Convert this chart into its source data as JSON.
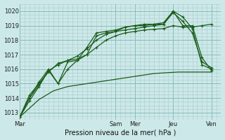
{
  "background_color": "#cce8e8",
  "grid_color": "#aacccc",
  "line_color": "#1a5c1a",
  "title": "Pression niveau de la mer( hPa )",
  "ylim": [
    1012.5,
    1020.5
  ],
  "yticks": [
    1013,
    1014,
    1015,
    1016,
    1017,
    1018,
    1019,
    1020
  ],
  "xtick_labels": [
    "Mar",
    "Sam",
    "Mer",
    "Jeu",
    "Ven"
  ],
  "xtick_positions": [
    0,
    60,
    72,
    96,
    120
  ],
  "xlim": [
    0,
    126
  ],
  "line1_x": [
    0,
    3,
    6,
    9,
    12,
    15,
    18,
    21,
    24,
    27,
    30,
    33,
    36,
    39,
    42,
    45,
    48,
    51,
    54,
    57,
    60,
    63,
    66,
    69,
    72,
    75,
    78,
    81,
    84,
    87,
    90,
    93,
    96,
    99,
    102,
    105,
    108,
    111,
    114,
    117,
    120
  ],
  "line1_y": [
    1012.7,
    1013.0,
    1013.3,
    1013.6,
    1013.9,
    1014.1,
    1014.3,
    1014.5,
    1014.6,
    1014.7,
    1014.8,
    1014.85,
    1014.9,
    1014.95,
    1015.0,
    1015.05,
    1015.1,
    1015.15,
    1015.2,
    1015.25,
    1015.3,
    1015.35,
    1015.4,
    1015.45,
    1015.5,
    1015.55,
    1015.6,
    1015.65,
    1015.7,
    1015.72,
    1015.74,
    1015.76,
    1015.78,
    1015.8,
    1015.8,
    1015.8,
    1015.8,
    1015.8,
    1015.8,
    1015.8,
    1015.8
  ],
  "line2_x": [
    0,
    6,
    12,
    18,
    24,
    30,
    36,
    42,
    48,
    54,
    60,
    66,
    72,
    78,
    84,
    90,
    96,
    102,
    108,
    114,
    120
  ],
  "line2_y": [
    1012.7,
    1014.2,
    1015.0,
    1015.8,
    1016.4,
    1016.6,
    1016.7,
    1017.0,
    1017.5,
    1018.0,
    1018.3,
    1018.5,
    1018.6,
    1018.7,
    1018.75,
    1018.8,
    1019.0,
    1018.9,
    1018.9,
    1019.0,
    1019.1
  ],
  "line3_x": [
    0,
    6,
    12,
    18,
    24,
    30,
    36,
    42,
    48,
    54,
    60,
    66,
    72,
    78,
    84,
    90,
    96,
    102,
    108,
    114,
    120
  ],
  "line3_y": [
    1012.7,
    1014.0,
    1014.9,
    1015.9,
    1016.3,
    1016.6,
    1016.9,
    1017.4,
    1018.0,
    1018.4,
    1018.6,
    1018.7,
    1018.8,
    1018.9,
    1019.0,
    1019.1,
    1019.9,
    1019.3,
    1018.5,
    1016.5,
    1016.1
  ],
  "line4_x": [
    0,
    6,
    12,
    18,
    24,
    30,
    36,
    42,
    48,
    54,
    60,
    66,
    72,
    78,
    84,
    90,
    96,
    102,
    108,
    114,
    120
  ],
  "line4_y": [
    1012.7,
    1013.8,
    1014.8,
    1015.9,
    1015.0,
    1016.0,
    1016.6,
    1017.0,
    1018.3,
    1018.5,
    1018.6,
    1018.9,
    1019.0,
    1019.0,
    1019.1,
    1019.1,
    1020.0,
    1019.6,
    1018.8,
    1016.3,
    1016.0
  ],
  "line5_x": [
    0,
    6,
    12,
    18,
    24,
    30,
    36,
    42,
    48,
    54,
    60,
    66,
    72,
    78,
    84,
    90,
    96,
    102,
    108,
    114,
    120
  ],
  "line5_y": [
    1012.7,
    1014.0,
    1015.1,
    1016.0,
    1015.0,
    1016.5,
    1016.6,
    1017.5,
    1018.5,
    1018.6,
    1018.7,
    1018.9,
    1019.0,
    1019.1,
    1019.1,
    1019.2,
    1020.0,
    1019.0,
    1019.0,
    1016.8,
    1015.9
  ]
}
